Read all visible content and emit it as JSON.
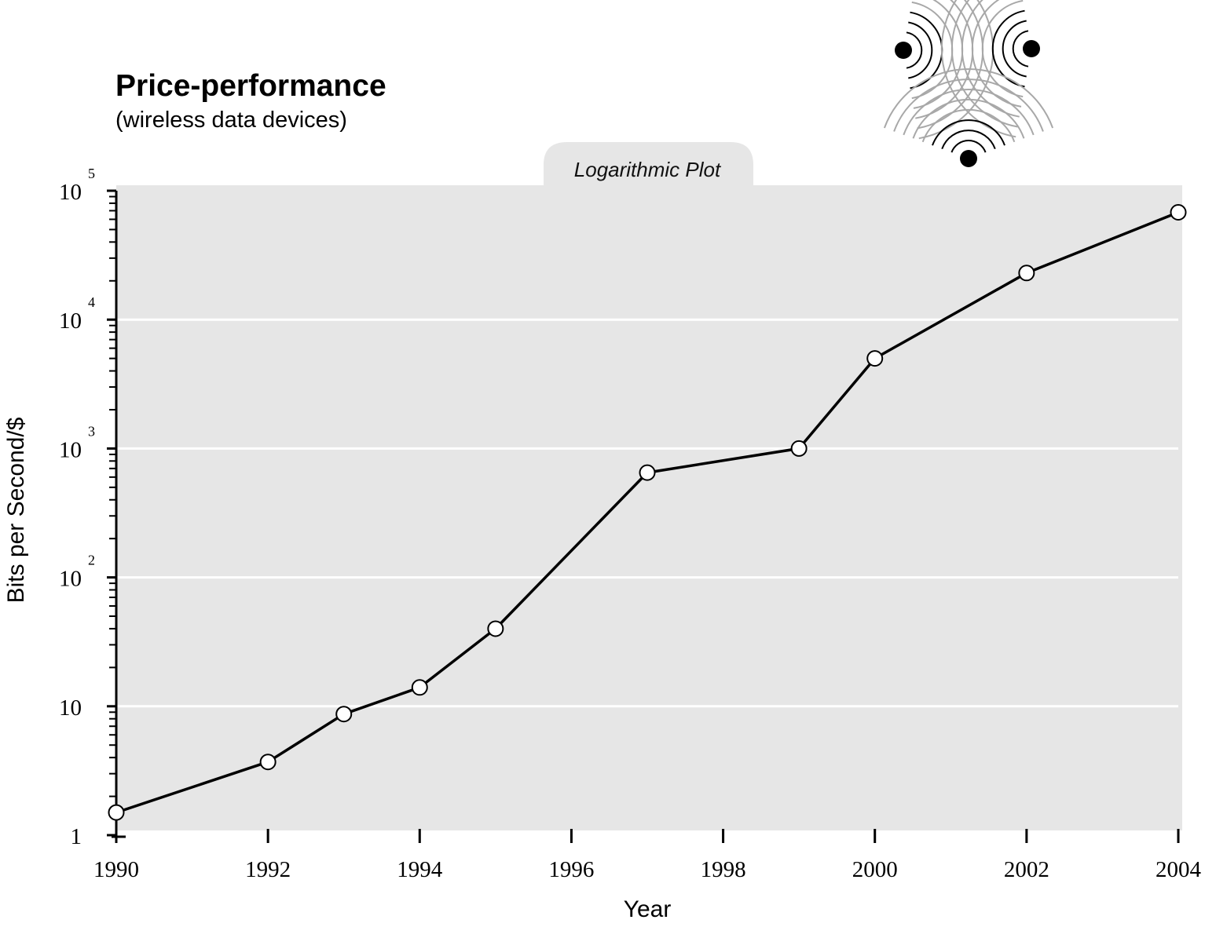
{
  "chart_data": {
    "type": "line",
    "title": "Price-performance",
    "subtitle": "(wireless data devices)",
    "annotation": "Logarithmic Plot",
    "xlabel": "Year",
    "ylabel": "Bits per Second/$",
    "yscale": "log",
    "ylim": [
      1,
      100000
    ],
    "xlim": [
      1990,
      2004
    ],
    "grid": "horizontal at decades",
    "legend": "none",
    "x_ticks": [
      1990,
      1992,
      1994,
      1996,
      1998,
      2000,
      2002,
      2004
    ],
    "y_ticks": [
      {
        "value": 1,
        "base": "1",
        "exp": ""
      },
      {
        "value": 10,
        "base": "10",
        "exp": ""
      },
      {
        "value": 100,
        "base": "10",
        "exp": "2"
      },
      {
        "value": 1000,
        "base": "10",
        "exp": "3"
      },
      {
        "value": 10000,
        "base": "10",
        "exp": "4"
      },
      {
        "value": 100000,
        "base": "10",
        "exp": "5"
      }
    ],
    "series": [
      {
        "x": [
          1990,
          1992,
          1993,
          1994,
          1995,
          1997,
          1999,
          2000,
          2002,
          2004
        ],
        "y": [
          1.5,
          3.7,
          8.7,
          14,
          40,
          650,
          1000,
          5000,
          23000,
          68000
        ]
      }
    ],
    "colors": {
      "plot_background": "#e6e6e6",
      "gridline": "#ffffff",
      "line": "#000000",
      "marker_fill": "#ffffff",
      "logo_dark": "#000000",
      "logo_light": "#a8a8a8"
    }
  }
}
